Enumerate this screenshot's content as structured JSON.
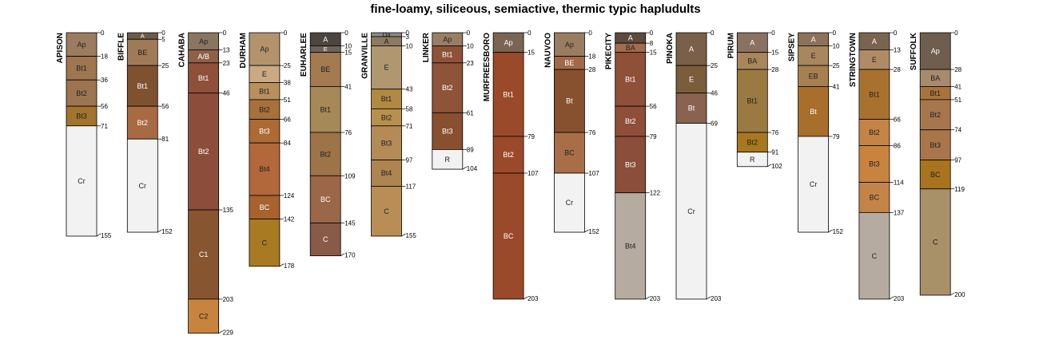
{
  "title": "fine-loamy, siliceous, semiactive, thermic typic hapludults",
  "depth_max": 229,
  "profiles": [
    {
      "name": "APISON",
      "horizons": [
        {
          "name": "Ap",
          "top": 0,
          "bottom": 18,
          "color": "#9C7C5E"
        },
        {
          "name": "Bt1",
          "top": 18,
          "bottom": 36,
          "color": "#9E7650"
        },
        {
          "name": "Bt2",
          "top": 36,
          "bottom": 56,
          "color": "#9C7550"
        },
        {
          "name": "Bt3",
          "top": 56,
          "bottom": 71,
          "color": "#A3742E"
        },
        {
          "name": "Cr",
          "top": 71,
          "bottom": 155,
          "color": "#F2F2F2"
        }
      ]
    },
    {
      "name": "BIFFLE",
      "horizons": [
        {
          "name": "A",
          "top": 0,
          "bottom": 5,
          "color": "#6E5A48"
        },
        {
          "name": "BE",
          "top": 5,
          "bottom": 25,
          "color": "#A07A56"
        },
        {
          "name": "Bt1",
          "top": 25,
          "bottom": 56,
          "color": "#7E522E"
        },
        {
          "name": "Bt2",
          "top": 56,
          "bottom": 81,
          "color": "#A86A42"
        },
        {
          "name": "Cr",
          "top": 81,
          "bottom": 152,
          "color": "#F2F2F2"
        }
      ]
    },
    {
      "name": "CAHABA",
      "horizons": [
        {
          "name": "Ap",
          "top": 0,
          "bottom": 13,
          "color": "#8A7560"
        },
        {
          "name": "A/B",
          "top": 13,
          "bottom": 23,
          "color": "#8E6048"
        },
        {
          "name": "Bt1",
          "top": 23,
          "bottom": 46,
          "color": "#8E5038"
        },
        {
          "name": "Bt2",
          "top": 46,
          "bottom": 135,
          "color": "#8C4E3A"
        },
        {
          "name": "C1",
          "top": 135,
          "bottom": 203,
          "color": "#87552F"
        },
        {
          "name": "C2",
          "top": 203,
          "bottom": 229,
          "color": "#C8843E"
        }
      ]
    },
    {
      "name": "DURHAM",
      "horizons": [
        {
          "name": "Ap",
          "top": 0,
          "bottom": 25,
          "color": "#B2936C"
        },
        {
          "name": "E",
          "top": 25,
          "bottom": 38,
          "color": "#CAA983"
        },
        {
          "name": "Bt1",
          "top": 38,
          "bottom": 51,
          "color": "#B8905C"
        },
        {
          "name": "Bt2",
          "top": 51,
          "bottom": 66,
          "color": "#A8703A"
        },
        {
          "name": "Bt3",
          "top": 66,
          "bottom": 84,
          "color": "#AC6A34"
        },
        {
          "name": "Bt4",
          "top": 84,
          "bottom": 124,
          "color": "#B2683A"
        },
        {
          "name": "BC",
          "top": 124,
          "bottom": 142,
          "color": "#A8622E"
        },
        {
          "name": "C",
          "top": 142,
          "bottom": 178,
          "color": "#A87A22"
        }
      ]
    },
    {
      "name": "EUHARLEE",
      "horizons": [
        {
          "name": "A",
          "top": 0,
          "bottom": 10,
          "color": "#4C4540"
        },
        {
          "name": "E",
          "top": 10,
          "bottom": 15,
          "color": "#6E6358"
        },
        {
          "name": "BE",
          "top": 15,
          "bottom": 41,
          "color": "#A47A50"
        },
        {
          "name": "Bt1",
          "top": 41,
          "bottom": 76,
          "color": "#A58A58"
        },
        {
          "name": "Bt2",
          "top": 76,
          "bottom": 109,
          "color": "#9C7448"
        },
        {
          "name": "BC",
          "top": 109,
          "bottom": 145,
          "color": "#9C6648"
        },
        {
          "name": "C",
          "top": 145,
          "bottom": 170,
          "color": "#885A48"
        }
      ]
    },
    {
      "name": "GRANVILLE",
      "horizons": [
        {
          "name": "Oa",
          "top": 0,
          "bottom": 3,
          "color": "#8A8A8A"
        },
        {
          "name": "A",
          "top": 3,
          "bottom": 10,
          "color": "#8E7A60"
        },
        {
          "name": "E",
          "top": 10,
          "bottom": 43,
          "color": "#B09770"
        },
        {
          "name": "Bt1",
          "top": 43,
          "bottom": 58,
          "color": "#B08A42"
        },
        {
          "name": "Bt2",
          "top": 58,
          "bottom": 71,
          "color": "#B8904E"
        },
        {
          "name": "Bt3",
          "top": 71,
          "bottom": 97,
          "color": "#B48A56"
        },
        {
          "name": "Bt4",
          "top": 97,
          "bottom": 117,
          "color": "#AE8450"
        },
        {
          "name": "C",
          "top": 117,
          "bottom": 155,
          "color": "#B88E56"
        }
      ]
    },
    {
      "name": "LINKER",
      "horizons": [
        {
          "name": "Ap",
          "top": 0,
          "bottom": 10,
          "color": "#9A7E64"
        },
        {
          "name": "Bt1",
          "top": 10,
          "bottom": 23,
          "color": "#8E5238"
        },
        {
          "name": "Bt2",
          "top": 23,
          "bottom": 61,
          "color": "#8E5438"
        },
        {
          "name": "Bt3",
          "top": 61,
          "bottom": 89,
          "color": "#88502E"
        },
        {
          "name": "R",
          "top": 89,
          "bottom": 104,
          "color": "#F2F2F2"
        }
      ]
    },
    {
      "name": "MURFREESBORO",
      "horizons": [
        {
          "name": "Ap",
          "top": 0,
          "bottom": 15,
          "color": "#7A6452"
        },
        {
          "name": "Bt1",
          "top": 15,
          "bottom": 79,
          "color": "#9A4A2A"
        },
        {
          "name": "Bt2",
          "top": 79,
          "bottom": 107,
          "color": "#9A4A2A"
        },
        {
          "name": "BC",
          "top": 107,
          "bottom": 203,
          "color": "#9A4A2A"
        }
      ]
    },
    {
      "name": "NAUVOO",
      "horizons": [
        {
          "name": "Ap",
          "top": 0,
          "bottom": 18,
          "color": "#9A7C62"
        },
        {
          "name": "BE",
          "top": 18,
          "bottom": 28,
          "color": "#A06A4A"
        },
        {
          "name": "Bt",
          "top": 28,
          "bottom": 76,
          "color": "#87502E"
        },
        {
          "name": "BC",
          "top": 76,
          "bottom": 107,
          "color": "#A86E48"
        },
        {
          "name": "Cr",
          "top": 107,
          "bottom": 152,
          "color": "#F2F2F2"
        }
      ]
    },
    {
      "name": "PIKECITY",
      "horizons": [
        {
          "name": "A",
          "top": 0,
          "bottom": 8,
          "color": "#5E4A3A"
        },
        {
          "name": "BA",
          "top": 8,
          "bottom": 15,
          "color": "#A26C4E"
        },
        {
          "name": "Bt1",
          "top": 15,
          "bottom": 56,
          "color": "#8E5038"
        },
        {
          "name": "Bt2",
          "top": 56,
          "bottom": 79,
          "color": "#8E4E38"
        },
        {
          "name": "Bt3",
          "top": 79,
          "bottom": 122,
          "color": "#8A4E3A"
        },
        {
          "name": "Bt4",
          "top": 122,
          "bottom": 203,
          "color": "#B5ABA0"
        }
      ]
    },
    {
      "name": "PINOKA",
      "horizons": [
        {
          "name": "A",
          "top": 0,
          "bottom": 25,
          "color": "#7A6048"
        },
        {
          "name": "E",
          "top": 25,
          "bottom": 46,
          "color": "#7A5E3C"
        },
        {
          "name": "Bt",
          "top": 46,
          "bottom": 69,
          "color": "#8A6250"
        },
        {
          "name": "Cr",
          "top": 69,
          "bottom": 203,
          "color": "#F2F2F2"
        }
      ]
    },
    {
      "name": "PIRUM",
      "horizons": [
        {
          "name": "A",
          "top": 0,
          "bottom": 15,
          "color": "#8A7260"
        },
        {
          "name": "BA",
          "top": 15,
          "bottom": 28,
          "color": "#A8865A"
        },
        {
          "name": "Bt1",
          "top": 28,
          "bottom": 76,
          "color": "#9A7A40"
        },
        {
          "name": "Bt2",
          "top": 76,
          "bottom": 91,
          "color": "#A8781E"
        },
        {
          "name": "R",
          "top": 91,
          "bottom": 102,
          "color": "#F2F2F2"
        }
      ]
    },
    {
      "name": "SIPSEY",
      "horizons": [
        {
          "name": "A",
          "top": 0,
          "bottom": 10,
          "color": "#8C7258"
        },
        {
          "name": "E",
          "top": 10,
          "bottom": 25,
          "color": "#A8865E"
        },
        {
          "name": "EB",
          "top": 25,
          "bottom": 41,
          "color": "#A88050"
        },
        {
          "name": "Bt",
          "top": 41,
          "bottom": 79,
          "color": "#A86E2C"
        },
        {
          "name": "Cr",
          "top": 79,
          "bottom": 152,
          "color": "#F2F2F2"
        }
      ]
    },
    {
      "name": "STRINGTOWN",
      "horizons": [
        {
          "name": "A",
          "top": 0,
          "bottom": 13,
          "color": "#7A6450"
        },
        {
          "name": "E",
          "top": 13,
          "bottom": 28,
          "color": "#B08C66"
        },
        {
          "name": "Bt1",
          "top": 28,
          "bottom": 66,
          "color": "#A8722E"
        },
        {
          "name": "Bt2",
          "top": 66,
          "bottom": 86,
          "color": "#C48448"
        },
        {
          "name": "Bt3",
          "top": 86,
          "bottom": 114,
          "color": "#C8843E"
        },
        {
          "name": "BC",
          "top": 114,
          "bottom": 137,
          "color": "#C48448"
        },
        {
          "name": "C",
          "top": 137,
          "bottom": 203,
          "color": "#B5ABA0"
        }
      ]
    },
    {
      "name": "SUFFOLK",
      "horizons": [
        {
          "name": "Ap",
          "top": 0,
          "bottom": 28,
          "color": "#6E5E4E"
        },
        {
          "name": "BA",
          "top": 28,
          "bottom": 41,
          "color": "#A88A6E"
        },
        {
          "name": "Bt1",
          "top": 41,
          "bottom": 51,
          "color": "#A8743A"
        },
        {
          "name": "Bt2",
          "top": 51,
          "bottom": 74,
          "color": "#A8764C"
        },
        {
          "name": "Bt3",
          "top": 74,
          "bottom": 97,
          "color": "#A8764A"
        },
        {
          "name": "BC",
          "top": 97,
          "bottom": 119,
          "color": "#A8741E"
        },
        {
          "name": "C",
          "top": 119,
          "bottom": 200,
          "color": "#A89068"
        }
      ]
    }
  ]
}
